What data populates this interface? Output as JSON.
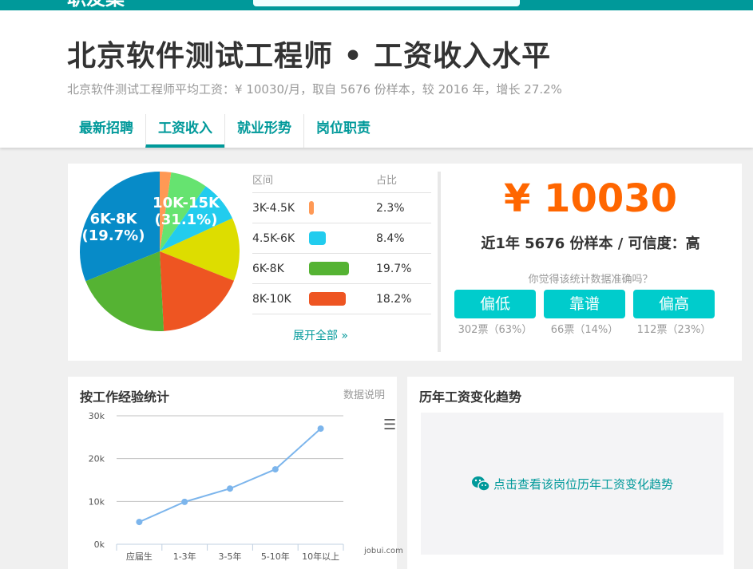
{
  "site": {
    "logo": "职友集"
  },
  "header": {
    "title": "北京软件测试工程师 • 工资收入水平",
    "subtitle": "北京软件测试工程师平均工资：¥ 10030/月，取自 5676 份样本，较 2016 年，增长 27.2%",
    "tabs": [
      {
        "label": "最新招聘"
      },
      {
        "label": "工资收入",
        "active": true
      },
      {
        "label": "就业形势"
      },
      {
        "label": "岗位职责"
      }
    ]
  },
  "distribution": {
    "col_range": "区间",
    "col_share": "占比",
    "rows": [
      {
        "range": "3K-4.5K",
        "share": "2.3%",
        "color": "#ff9955"
      },
      {
        "range": "4.5K-6K",
        "share": "8.4%",
        "color": "#22ccee"
      },
      {
        "range": "6K-8K",
        "share": "19.7%",
        "color": "#55b333"
      },
      {
        "range": "8K-10K",
        "share": "18.2%",
        "color": "#ee5522"
      }
    ],
    "expand_label": "展开全部 »"
  },
  "chart_data": [
    {
      "type": "pie",
      "slices": [
        {
          "label": "10K-15K",
          "value": 31.1,
          "color": "#078bc8",
          "data_label": "10K-15K",
          "data_label_pct": "(31.1%)"
        },
        {
          "label": "3K-4.5K",
          "value": 2.3,
          "color": "#ff9955"
        },
        {
          "value": 7.5,
          "color": "#66e370"
        },
        {
          "label": "4.5K-6K",
          "value": 8.4,
          "color": "#22ccee"
        },
        {
          "value": 12.8,
          "color": "#dddd00"
        },
        {
          "label": "8K-10K",
          "value": 18.2,
          "color": "#ee5522"
        },
        {
          "label": "6K-8K",
          "value": 19.7,
          "color": "#55b333",
          "data_label": "6K-8K",
          "data_label_pct": "(19.7%)"
        }
      ]
    },
    {
      "type": "line",
      "title": "按工作经验统计",
      "categories": [
        "应届生",
        "1-3年",
        "3-5年",
        "5-10年",
        "10年以上"
      ],
      "values": [
        5.2,
        9.9,
        13.0,
        17.5,
        27.0
      ],
      "y_ticks": [
        "0k",
        "10k",
        "20k",
        "30k"
      ],
      "ylim": [
        0,
        30
      ],
      "grid": true,
      "color": "#7cb5ec"
    }
  ],
  "summary": {
    "avg": "¥ 10030",
    "samples": "近1年 5676 份样本 / 可信度：高",
    "ask": "你觉得该统计数据准确吗？",
    "votes": [
      {
        "label": "偏低",
        "count": "302票（63%）"
      },
      {
        "label": "靠谱",
        "count": "66票（14%）"
      },
      {
        "label": "偏高",
        "count": "112票（23%）"
      }
    ]
  },
  "experience": {
    "title": "按工作经验统计",
    "link": "数据说明",
    "credit": "jobui.com"
  },
  "trend": {
    "title": "历年工资变化趋势",
    "cta": "点击查看该岗位历年工资变化趋势"
  }
}
